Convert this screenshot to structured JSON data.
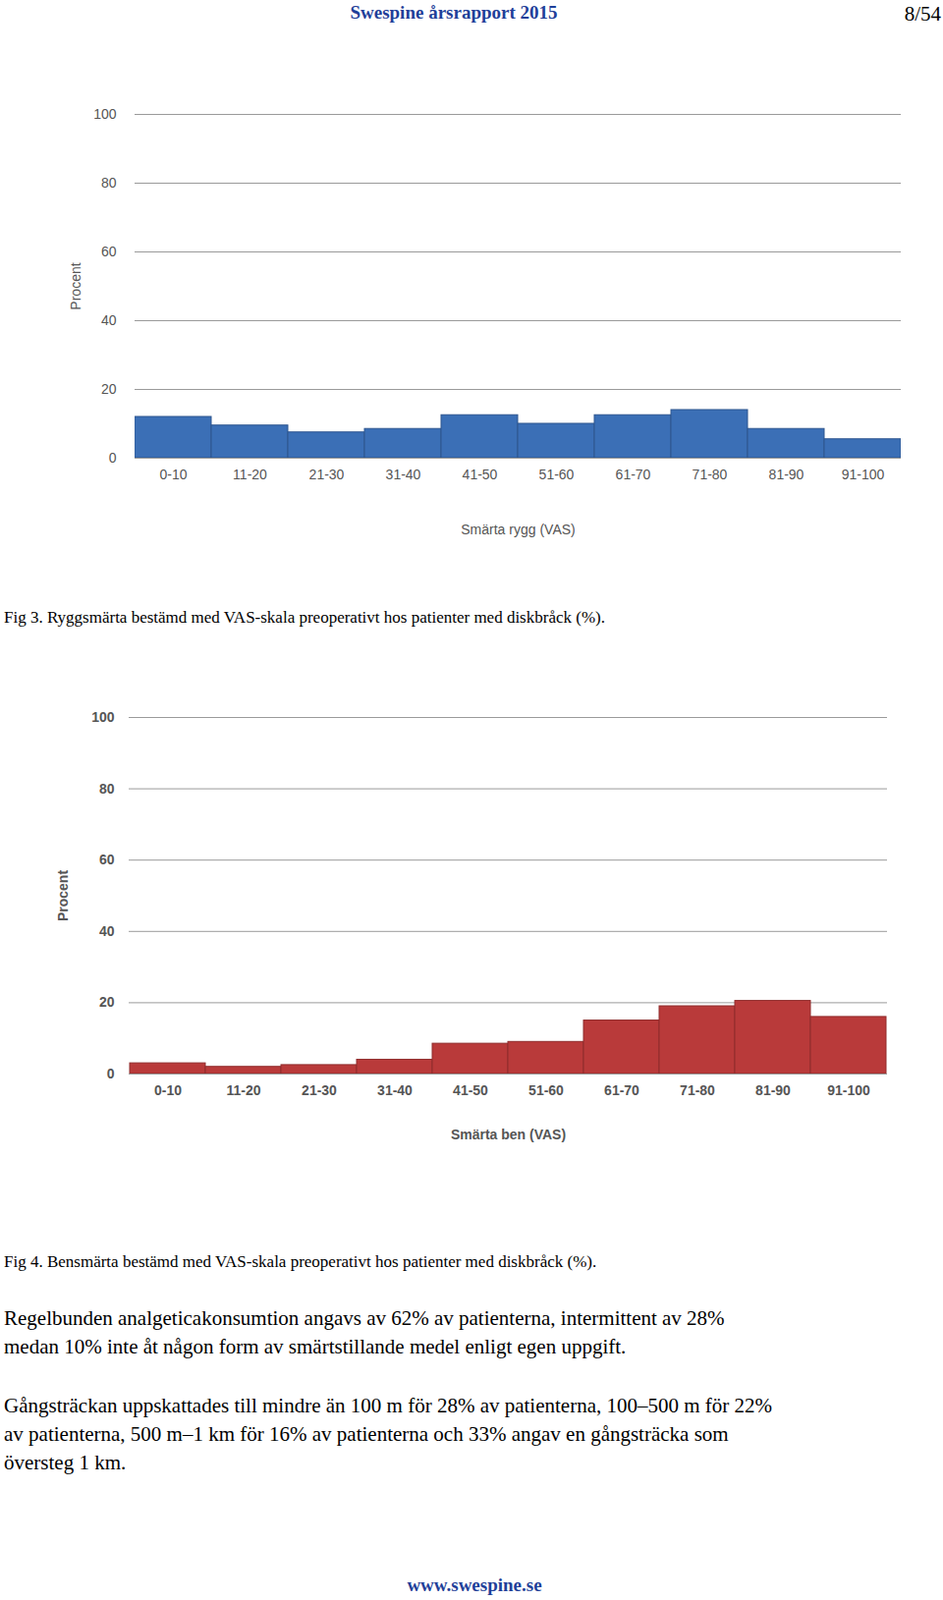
{
  "header": {
    "title": "Swespine årsrapport 2015",
    "page": "8/54"
  },
  "chart_data": [
    {
      "type": "bar",
      "categories": [
        "0-10",
        "11-20",
        "21-30",
        "31-40",
        "41-50",
        "51-60",
        "61-70",
        "71-80",
        "81-90",
        "91-100"
      ],
      "values": [
        12,
        9.5,
        7.5,
        8.5,
        12.5,
        10,
        12.5,
        14,
        8.5,
        5.5
      ],
      "color": "#3b6fb6",
      "xlabel": "Smärta rygg (VAS)",
      "ylabel": "Procent",
      "ylim": [
        0,
        100
      ],
      "yticks": [
        0,
        20,
        40,
        60,
        80,
        100
      ],
      "grid": true,
      "caption": "Fig 3. Ryggsmärta bestämd med VAS-skala preoperativt hos patienter med diskbråck (%)."
    },
    {
      "type": "bar",
      "categories": [
        "0-10",
        "11-20",
        "21-30",
        "31-40",
        "41-50",
        "51-60",
        "61-70",
        "71-80",
        "81-90",
        "91-100"
      ],
      "values": [
        3,
        2,
        2.5,
        4,
        8.5,
        9,
        15,
        19,
        20.5,
        16
      ],
      "color": "#b93a3a",
      "xlabel": "Smärta ben (VAS)",
      "ylabel": "Procent",
      "ylim": [
        0,
        100
      ],
      "yticks": [
        0,
        20,
        40,
        60,
        80,
        100
      ],
      "grid": true,
      "caption": "Fig 4. Bensmärta bestämd med VAS-skala preoperativt hos patienter med diskbråck (%)."
    }
  ],
  "paragraphs": [
    [
      "Regelbunden analgeticakonsumtion angavs av 62% av patienterna, intermittent av 28%",
      "medan 10% inte åt någon form av smärtstillande medel enligt egen uppgift."
    ],
    [
      "Gångsträckan uppskattades till mindre än 100 m för 28% av patienterna, 100–500 m för 22%",
      "av patienterna, 500 m–1 km för 16% av patienterna och 33% angav en gångsträcka som",
      "översteg 1 km."
    ]
  ],
  "footer": "www.swespine.se"
}
